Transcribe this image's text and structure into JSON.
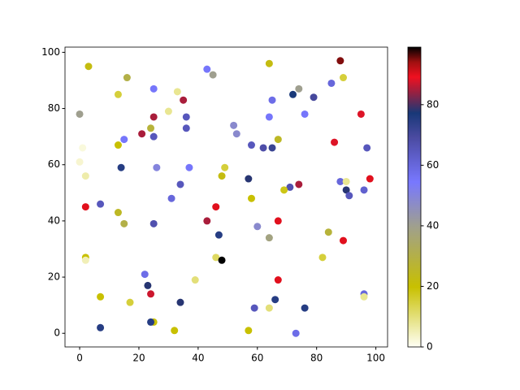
{
  "chart_data": {
    "type": "scatter",
    "x": [
      3,
      16,
      45,
      33,
      64,
      88,
      89,
      25,
      0,
      13,
      30,
      35,
      43,
      74,
      72,
      79,
      65,
      85,
      95,
      76,
      64,
      25,
      36,
      24,
      36,
      52,
      53,
      21,
      25,
      15,
      13,
      67,
      58,
      62,
      65,
      86,
      97,
      1,
      0,
      2,
      14,
      26,
      37,
      49,
      48,
      57,
      98,
      88,
      90,
      74,
      71,
      69,
      96,
      90,
      91,
      34,
      31,
      58,
      7,
      2,
      46,
      13,
      15,
      25,
      43,
      67,
      60,
      84,
      47,
      64,
      89,
      2,
      2,
      46,
      48,
      82,
      22,
      39,
      67,
      23,
      24,
      96,
      96,
      7,
      17,
      34,
      66,
      76,
      59,
      64,
      25,
      24,
      7,
      32,
      57,
      73
    ],
    "values": [
      95,
      91,
      92,
      86,
      96,
      97,
      91,
      87,
      78,
      85,
      79,
      83,
      94,
      87,
      85,
      84,
      83,
      89,
      78,
      78,
      77,
      77,
      77,
      73,
      73,
      74,
      71,
      71,
      70,
      69,
      67,
      69,
      67,
      66,
      66,
      68,
      66,
      66,
      61,
      56,
      59,
      59,
      59,
      59,
      56,
      55,
      55,
      54,
      54,
      53,
      52,
      51,
      51,
      51,
      49,
      53,
      48,
      48,
      46,
      45,
      45,
      43,
      39,
      39,
      40,
      40,
      38,
      36,
      35,
      34,
      33,
      27,
      26,
      27,
      26,
      27,
      21,
      19,
      19,
      17,
      14,
      14,
      13,
      13,
      11,
      11,
      12,
      9,
      9,
      9,
      4,
      4,
      2,
      1,
      1,
      0
    ],
    "c": [
      22,
      30,
      40,
      8,
      22,
      95,
      15,
      55,
      40,
      15,
      8,
      85,
      55,
      40,
      77,
      70,
      58,
      60,
      88,
      55,
      55,
      85,
      65,
      28,
      65,
      48,
      48,
      85,
      65,
      55,
      20,
      25,
      65,
      68,
      72,
      88,
      65,
      2,
      3,
      6,
      75,
      50,
      55,
      15,
      22,
      78,
      90,
      60,
      8,
      85,
      67,
      18,
      62,
      78,
      65,
      65,
      60,
      20,
      65,
      90,
      90,
      25,
      30,
      67,
      85,
      90,
      48,
      28,
      75,
      38,
      90,
      20,
      5,
      12,
      99,
      15,
      58,
      10,
      90,
      78,
      87,
      60,
      8,
      20,
      15,
      78,
      75,
      75,
      65,
      10,
      20,
      75,
      75,
      20,
      20,
      58
    ],
    "xlim": [
      -4.95,
      103.95
    ],
    "ylim": [
      -4.85,
      101.85
    ],
    "xticks": [
      0,
      20,
      40,
      60,
      80,
      100
    ],
    "yticks": [
      0,
      20,
      40,
      60,
      80,
      100
    ],
    "clim": [
      0,
      99
    ],
    "cticks": [
      0,
      20,
      40,
      60,
      80
    ]
  }
}
